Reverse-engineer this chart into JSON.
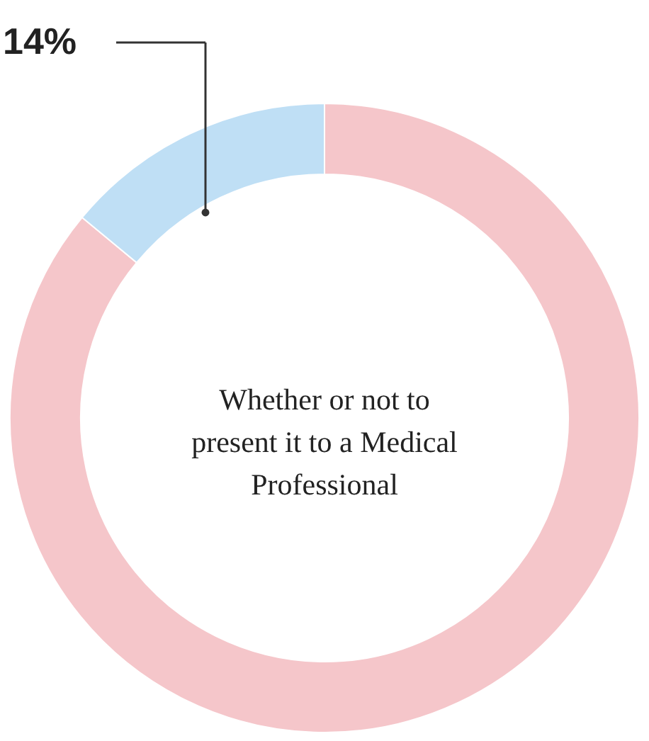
{
  "chart_data": {
    "type": "donut",
    "categories": [
      null,
      null
    ],
    "values": [
      86,
      14
    ],
    "colors": [
      "#f5c6ca",
      "#bfdff5"
    ],
    "value_labels": [
      null,
      "14%"
    ],
    "annotations": [
      "Whether or not to\npresent it to a Medical\nProfessional"
    ]
  }
}
